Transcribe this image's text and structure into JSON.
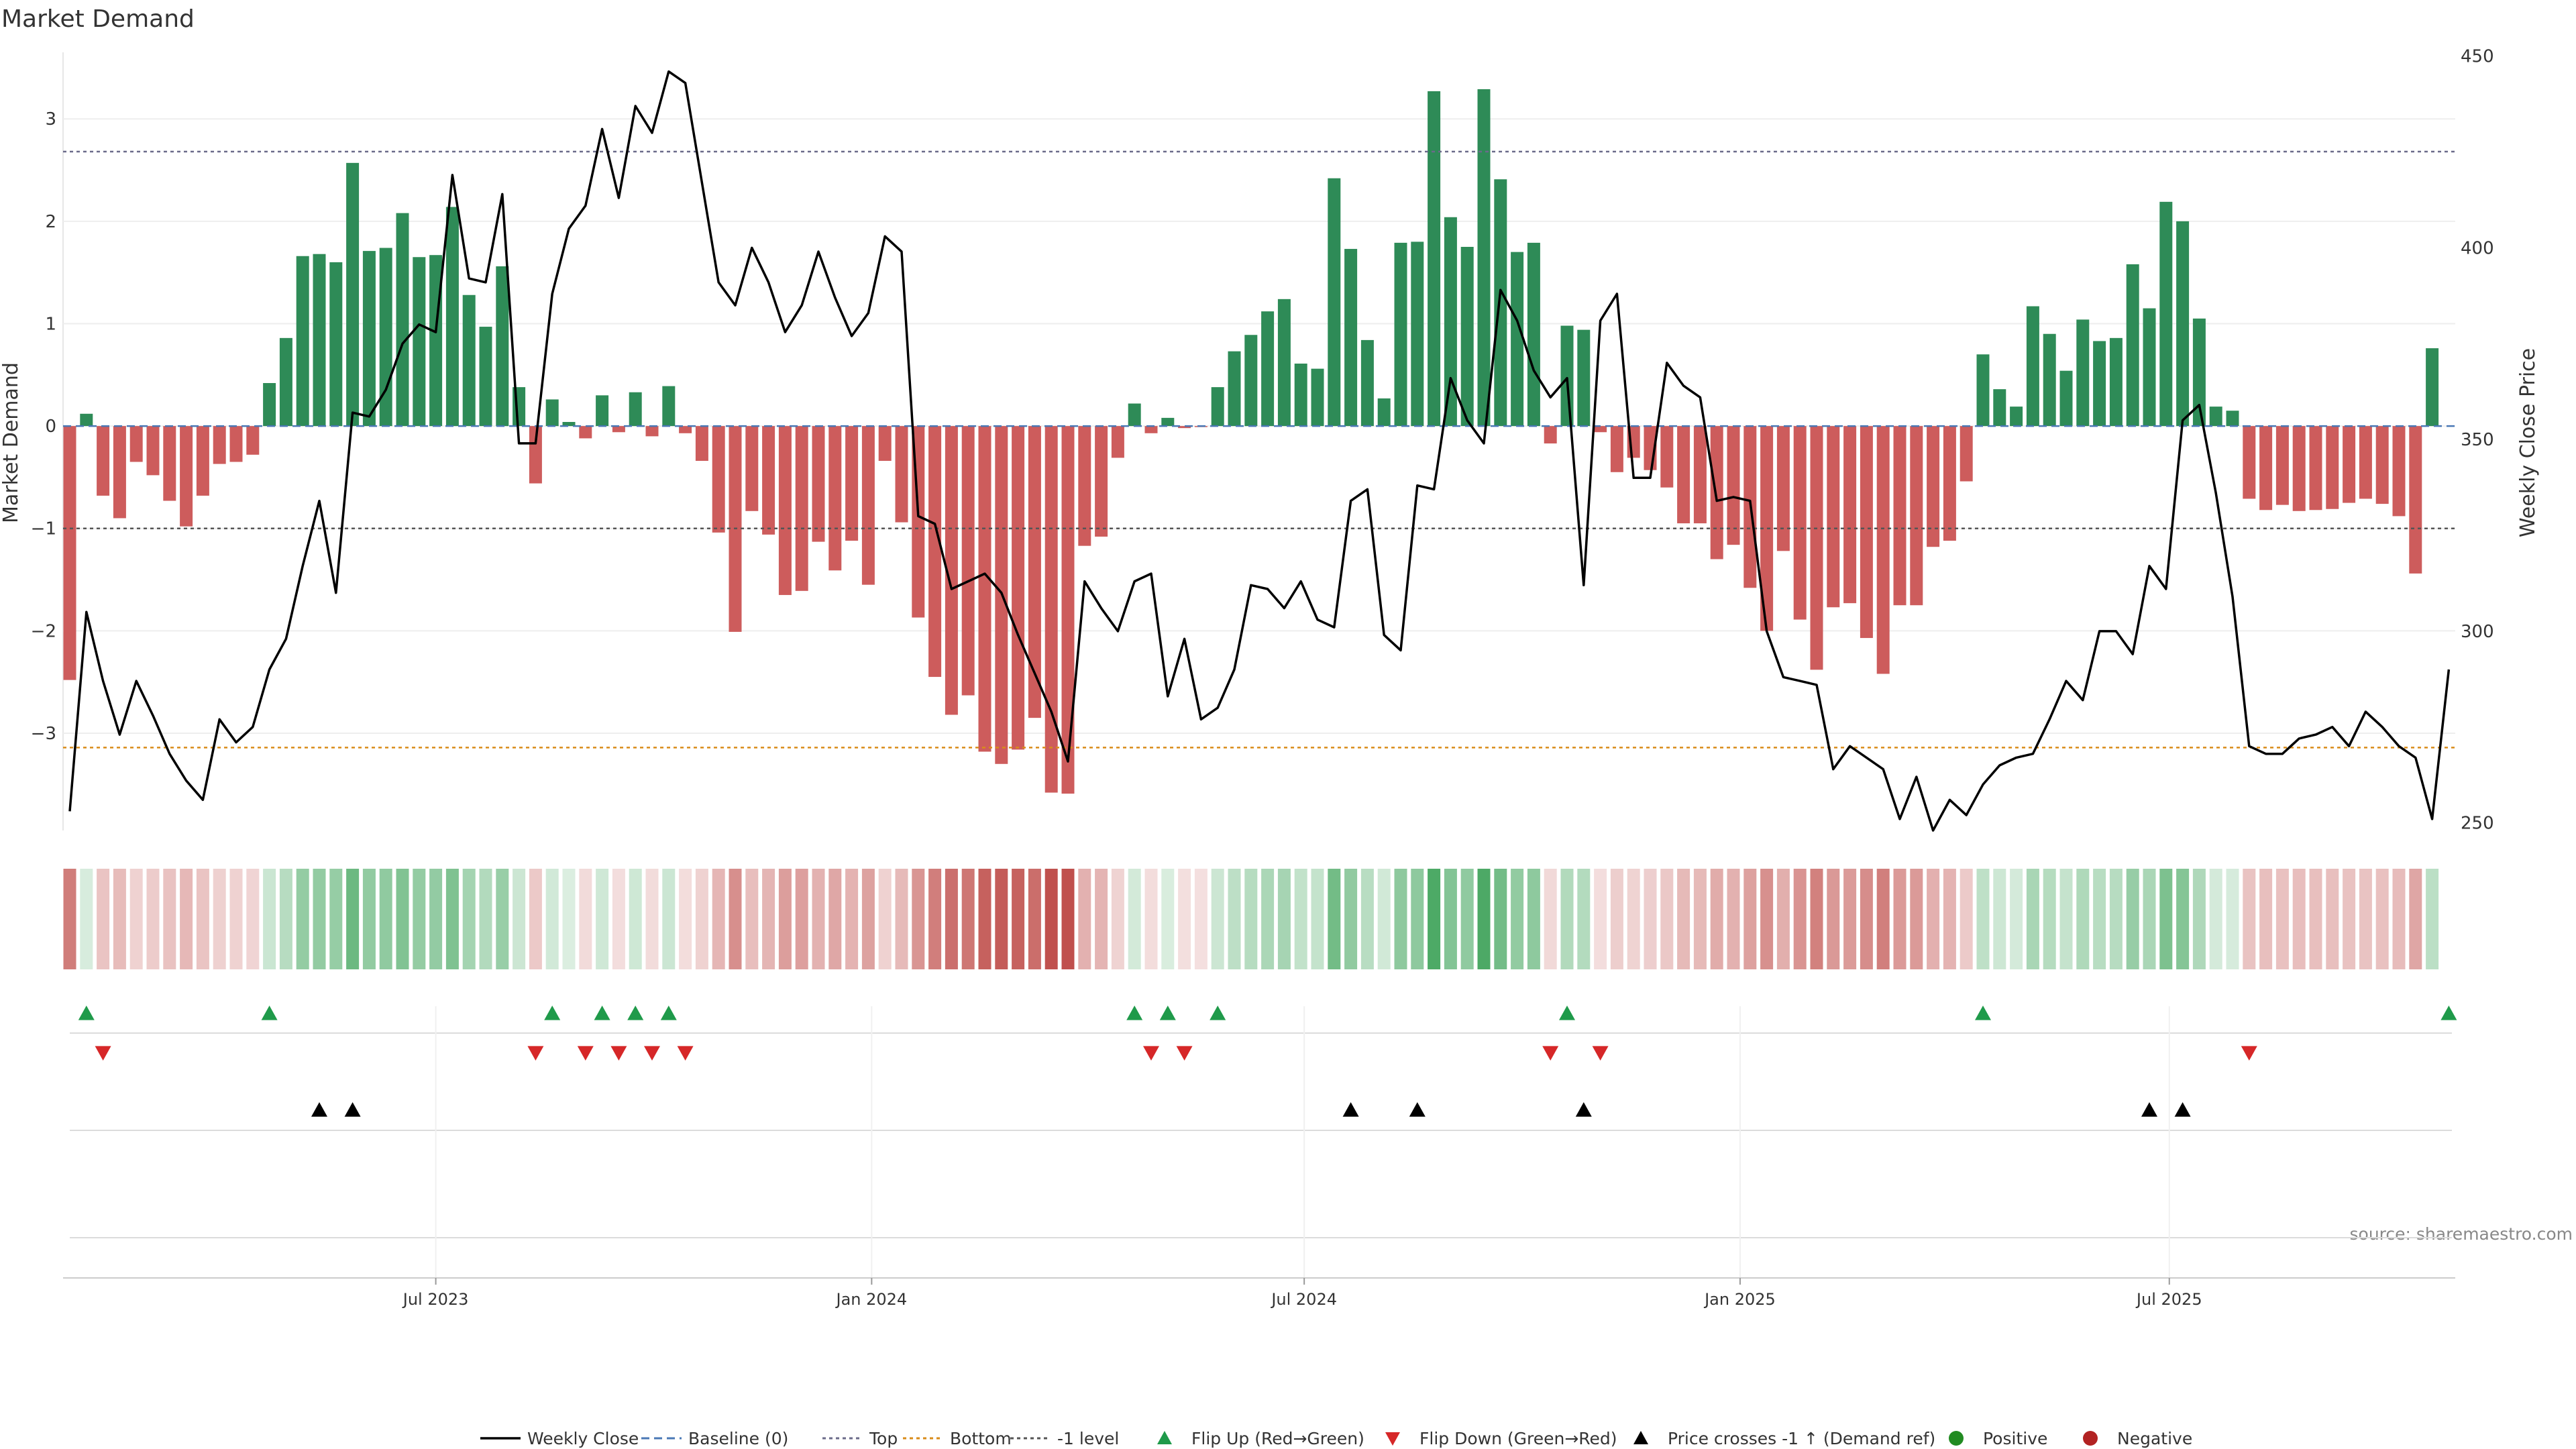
{
  "chart_data": {
    "type": "bar",
    "title": "Market Demand",
    "ylabel": "Market Demand",
    "y2label": "Weekly Close Price",
    "ylim": [
      -3.95,
      3.65
    ],
    "y2lim": [
      248,
      451
    ],
    "y_ticks": [
      3,
      2,
      1,
      0,
      -1,
      -2,
      -3
    ],
    "y_tick_labels": [
      "3",
      "2",
      "1",
      "0",
      "−1",
      "−2",
      "−3"
    ],
    "y2_ticks": [
      450,
      400,
      350,
      300,
      250
    ],
    "y2_tick_labels": [
      "450",
      "400",
      "350",
      "300",
      "250"
    ],
    "x_ticks": [
      {
        "label": "Jul 2023",
        "index": 22
      },
      {
        "label": "Jan 2024",
        "index": 48.2
      },
      {
        "label": "Jul 2024",
        "index": 74.2
      },
      {
        "label": "Jan 2025",
        "index": 100.4
      },
      {
        "label": "Jul 2025",
        "index": 126.2
      }
    ],
    "source_text": "source: sharemaestro.com",
    "levels": {
      "top": 2.68,
      "bottom": -3.14,
      "minus_one": -1
    },
    "colors": {
      "positive": "#2e8b57",
      "negative": "#cd5c5c",
      "line": "#000000",
      "top": "#6b6b8a",
      "bottom": "#d98c1a",
      "minus_one": "#555555",
      "flip_up": "#1f9a4a",
      "flip_down": "#d62728",
      "cross": "#000000",
      "dot_positive": "#228b22",
      "dot_negative": "#b22222"
    },
    "series": [
      {
        "name": "Market Demand",
        "values": [
          -2.48,
          0.12,
          -0.68,
          -0.9,
          -0.35,
          -0.48,
          -0.73,
          -0.98,
          -0.68,
          -0.37,
          -0.35,
          -0.28,
          0.42,
          0.86,
          1.66,
          1.68,
          1.6,
          2.57,
          1.71,
          1.74,
          2.08,
          1.65,
          1.67,
          2.14,
          1.28,
          0.97,
          1.56,
          0.38,
          -0.56,
          0.26,
          0.04,
          -0.12,
          0.3,
          -0.06,
          0.33,
          -0.1,
          0.39,
          -0.07,
          -0.34,
          -1.04,
          -2.01,
          -0.83,
          -1.06,
          -1.65,
          -1.61,
          -1.13,
          -1.41,
          -1.12,
          -1.55,
          -0.34,
          -0.94,
          -1.87,
          -2.45,
          -2.82,
          -2.63,
          -3.18,
          -3.3,
          -3.16,
          -2.85,
          -3.58,
          -3.59,
          -1.17,
          -1.08,
          -0.31,
          0.22,
          -0.07,
          0.08,
          -0.02,
          -0.01,
          0.38,
          0.73,
          0.89,
          1.12,
          1.24,
          0.61,
          0.56,
          2.42,
          1.73,
          0.84,
          0.27,
          1.79,
          1.8,
          3.27,
          2.04,
          1.75,
          3.29,
          2.41,
          1.7,
          1.79,
          -0.17,
          0.98,
          0.94,
          -0.06,
          -0.45,
          -0.31,
          -0.43,
          -0.6,
          -0.95,
          -0.95,
          -1.3,
          -1.16,
          -1.58,
          -2.0,
          -1.22,
          -1.89,
          -2.38,
          -1.77,
          -1.73,
          -2.07,
          -2.42,
          -1.75,
          -1.75,
          -1.18,
          -1.12,
          -0.54,
          0.7,
          0.36,
          0.19,
          1.17,
          0.9,
          0.54,
          1.04,
          0.83,
          0.86,
          1.58,
          1.15,
          2.19,
          2.0,
          1.05,
          0.19,
          0.15,
          -0.71,
          -0.82,
          -0.77,
          -0.83,
          -0.82,
          -0.81,
          -0.75,
          -0.71,
          -0.76,
          -0.88,
          -1.44,
          0.76
        ]
      },
      {
        "name": "Weekly Close",
        "values": [
          253,
          305,
          287,
          273,
          287,
          278,
          268,
          261,
          256,
          277,
          271,
          275,
          290,
          298,
          317,
          334,
          310,
          357,
          356,
          363,
          375,
          380,
          378,
          419,
          392,
          391,
          414,
          349,
          349,
          388,
          405,
          411,
          431,
          413,
          437,
          430,
          446,
          443,
          417,
          391,
          385,
          400,
          391,
          378,
          385,
          399,
          387,
          377,
          383,
          403,
          399,
          330,
          328,
          311,
          313,
          315,
          310,
          299,
          289,
          279,
          266,
          313,
          306,
          300,
          313,
          315,
          283,
          298,
          277,
          280,
          290,
          312,
          311,
          306,
          313,
          303,
          301,
          334,
          337,
          299,
          295,
          338,
          337,
          366,
          355,
          349,
          389,
          381,
          368,
          361,
          366,
          312,
          381,
          388,
          340,
          340,
          370,
          364,
          361,
          334,
          335,
          334,
          300,
          288,
          287,
          286,
          264,
          270,
          267,
          264,
          251,
          262,
          248,
          256,
          252,
          260,
          265,
          267,
          268,
          277,
          287,
          282,
          300,
          300,
          294,
          317,
          311,
          355,
          359,
          336,
          309,
          270,
          268,
          268,
          272,
          273,
          275,
          270,
          279,
          275,
          270,
          267,
          251,
          290
        ]
      }
    ],
    "flip_up_idx": [
      1,
      12,
      29,
      32,
      34,
      36,
      64,
      66,
      69,
      90,
      115,
      143
    ],
    "flip_down_idx": [
      2,
      28,
      31,
      33,
      35,
      37,
      65,
      67,
      89,
      92,
      131
    ],
    "cross_idx": [
      15,
      17,
      77,
      81,
      91,
      125,
      127
    ],
    "legend": [
      {
        "key": "weekly-close",
        "label": "Weekly Close",
        "type": "line"
      },
      {
        "key": "baseline",
        "label": "Baseline (0)",
        "type": "dash-line"
      },
      {
        "key": "top",
        "label": "Top",
        "type": "dot-line"
      },
      {
        "key": "bottom",
        "label": "Bottom",
        "type": "dot-line"
      },
      {
        "key": "minus-one",
        "label": "-1 level",
        "type": "dot-line"
      },
      {
        "key": "flip-up",
        "label": "Flip Up (Red→Green)",
        "type": "tri-up"
      },
      {
        "key": "flip-down",
        "label": "Flip Down (Green→Red)",
        "type": "tri-down"
      },
      {
        "key": "cross",
        "label": "Price crosses -1 ↑ (Demand ref)",
        "type": "tri-up-black"
      },
      {
        "key": "positive",
        "label": "Positive",
        "type": "dot"
      },
      {
        "key": "negative",
        "label": "Negative",
        "type": "dot"
      }
    ]
  }
}
